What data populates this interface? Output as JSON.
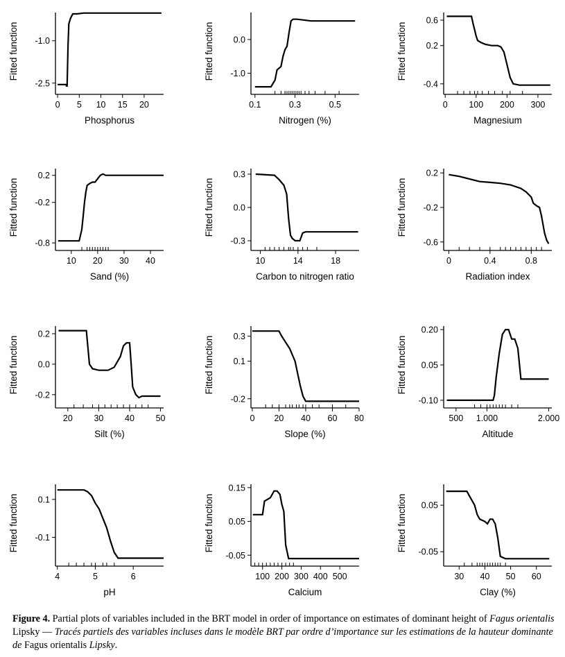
{
  "colors": {
    "line": "#000000",
    "background": "#ffffff"
  },
  "ylabel_common": "Fitted function",
  "chart_data": [
    {
      "type": "line",
      "id": "phosphorus",
      "xlabel": "Phosphorus",
      "ylabel": "Fitted function",
      "xlim": [
        -0.5,
        24.5
      ],
      "ylim": [
        -2.75,
        0.0
      ],
      "xticks": [
        0,
        5,
        10,
        15,
        20
      ],
      "xticklabels": [
        "0",
        "5",
        "10",
        "15",
        "20"
      ],
      "yticks": [
        -2.5,
        -1.0
      ],
      "yticklabels": [
        "-2.5",
        "-1.0"
      ],
      "rug": [],
      "x": [
        0,
        2.0,
        2.05,
        2.2,
        2.4,
        2.6,
        3.0,
        3.5,
        4.5,
        6,
        24
      ],
      "y": [
        -2.55,
        -2.55,
        -2.6,
        -2.6,
        -1.2,
        -0.4,
        -0.2,
        -0.05,
        -0.05,
        -0.02,
        -0.02
      ]
    },
    {
      "type": "line",
      "id": "nitrogen",
      "xlabel": "Nitrogen (%)",
      "ylabel": "Fitted function",
      "xlim": [
        0.08,
        0.62
      ],
      "ylim": [
        -1.5,
        0.8
      ],
      "xticks": [
        0.1,
        0.3,
        0.5
      ],
      "xticklabels": [
        "0.1",
        "0.3",
        "0.5"
      ],
      "yticks": [
        -1.0,
        0.0
      ],
      "yticklabels": [
        "-1.0",
        "0.0"
      ],
      "rug": [
        0.2,
        0.23,
        0.25,
        0.26,
        0.27,
        0.28,
        0.29,
        0.3,
        0.31,
        0.32,
        0.33,
        0.35,
        0.37,
        0.4,
        0.45,
        0.52
      ],
      "x": [
        0.1,
        0.18,
        0.2,
        0.21,
        0.23,
        0.24,
        0.25,
        0.26,
        0.27,
        0.28,
        0.29,
        0.31,
        0.38,
        0.6
      ],
      "y": [
        -1.4,
        -1.4,
        -1.2,
        -0.9,
        -0.8,
        -0.5,
        -0.3,
        -0.2,
        0.2,
        0.55,
        0.6,
        0.6,
        0.55,
        0.55
      ]
    },
    {
      "type": "line",
      "id": "magnesium",
      "xlabel": "Magnesium",
      "ylabel": "Fitted function",
      "xlim": [
        -5,
        345
      ],
      "ylim": [
        -0.5,
        0.72
      ],
      "xticks": [
        0,
        100,
        200,
        300
      ],
      "xticklabels": [
        "0",
        "100",
        "200",
        "300"
      ],
      "yticks": [
        -0.4,
        0.2,
        0.6
      ],
      "yticklabels": [
        "-0.4",
        "0.2",
        "0.6"
      ],
      "rug": [
        40,
        60,
        80,
        95,
        105,
        120,
        140,
        160,
        185,
        210,
        250
      ],
      "x": [
        5,
        85,
        90,
        95,
        100,
        105,
        115,
        130,
        150,
        170,
        180,
        190,
        200,
        210,
        220,
        240,
        340
      ],
      "y": [
        0.66,
        0.66,
        0.55,
        0.45,
        0.35,
        0.28,
        0.25,
        0.22,
        0.2,
        0.2,
        0.18,
        0.1,
        -0.1,
        -0.3,
        -0.4,
        -0.42,
        -0.42
      ]
    },
    {
      "type": "line",
      "id": "sand",
      "xlabel": "Sand (%)",
      "ylabel": "Fitted function",
      "xlim": [
        4,
        45
      ],
      "ylim": [
        -0.85,
        0.3
      ],
      "xticks": [
        10,
        20,
        30,
        40
      ],
      "xticklabels": [
        "10",
        "20",
        "30",
        "40"
      ],
      "yticks": [
        -0.8,
        -0.2,
        0.2
      ],
      "yticklabels": [
        "-0.8",
        "-0.2",
        "0.2"
      ],
      "rug": [
        14,
        16,
        17,
        18,
        19,
        20,
        21,
        22,
        23,
        24
      ],
      "x": [
        5,
        13,
        14,
        14.5,
        15,
        15.5,
        16,
        17,
        18,
        19,
        20,
        21,
        22,
        23,
        25,
        45
      ],
      "y": [
        -0.77,
        -0.77,
        -0.6,
        -0.4,
        -0.2,
        -0.05,
        0.05,
        0.08,
        0.1,
        0.1,
        0.15,
        0.2,
        0.22,
        0.2,
        0.2,
        0.2
      ]
    },
    {
      "type": "line",
      "id": "cn_ratio",
      "xlabel": "Carbon to nitrogen ratio",
      "ylabel": "Fitted function",
      "xlim": [
        9,
        20.5
      ],
      "ylim": [
        -0.35,
        0.35
      ],
      "xticks": [
        10,
        14,
        18
      ],
      "xticklabels": [
        "10",
        "14",
        "18"
      ],
      "yticks": [
        -0.3,
        0.0,
        0.3
      ],
      "yticklabels": [
        "-0.3",
        "0.0",
        "0.3"
      ],
      "rug": [
        10.5,
        11,
        11.5,
        12,
        12.5,
        13,
        13.2,
        13.5,
        14,
        14.5,
        15,
        16
      ],
      "x": [
        9.5,
        11.5,
        12,
        12.5,
        12.8,
        13,
        13.2,
        13.4,
        13.7,
        14.2,
        14.5,
        14.8,
        20.4
      ],
      "y": [
        0.3,
        0.29,
        0.25,
        0.2,
        0.12,
        -0.1,
        -0.25,
        -0.28,
        -0.3,
        -0.3,
        -0.23,
        -0.22,
        -0.22
      ]
    },
    {
      "type": "line",
      "id": "radiation",
      "xlabel": "Radiation index",
      "ylabel": "Fitted function",
      "xlim": [
        -0.05,
        1.0
      ],
      "ylim": [
        -0.65,
        0.25
      ],
      "xticks": [
        0,
        0.4,
        0.8
      ],
      "xticklabels": [
        "0",
        "0.4",
        "0.8"
      ],
      "yticks": [
        -0.6,
        -0.2,
        0.2
      ],
      "yticklabels": [
        "-0.6",
        "-0.2",
        "0.2"
      ],
      "rug": [
        0.1,
        0.2,
        0.3,
        0.4,
        0.5,
        0.55,
        0.6,
        0.65,
        0.7,
        0.75,
        0.8,
        0.85,
        0.9
      ],
      "x": [
        0,
        0.1,
        0.2,
        0.3,
        0.4,
        0.5,
        0.6,
        0.7,
        0.75,
        0.8,
        0.82,
        0.85,
        0.88,
        0.9,
        0.93,
        0.95,
        0.97
      ],
      "y": [
        0.18,
        0.16,
        0.13,
        0.1,
        0.09,
        0.08,
        0.06,
        0.02,
        -0.02,
        -0.08,
        -0.15,
        -0.18,
        -0.2,
        -0.3,
        -0.5,
        -0.58,
        -0.62
      ]
    },
    {
      "type": "line",
      "id": "silt",
      "xlabel": "Silt (%)",
      "ylabel": "Fitted function",
      "xlim": [
        16,
        51
      ],
      "ylim": [
        -0.26,
        0.25
      ],
      "xticks": [
        20,
        30,
        40,
        50
      ],
      "xticklabels": [
        "20",
        "30",
        "40",
        "50"
      ],
      "rug": [
        22,
        25,
        28,
        30,
        32,
        34,
        36,
        38,
        40,
        42,
        44,
        46
      ],
      "yticks": [
        -0.2,
        0.0,
        0.2
      ],
      "yticklabels": [
        "-0.2",
        "0.0",
        "0.2"
      ],
      "x": [
        17,
        26,
        27,
        28,
        30,
        33,
        35,
        37,
        38,
        39,
        40,
        40.5,
        41,
        42,
        43,
        44,
        50
      ],
      "y": [
        0.22,
        0.22,
        0.0,
        -0.03,
        -0.04,
        -0.04,
        -0.02,
        0.05,
        0.12,
        0.14,
        0.14,
        0.0,
        -0.15,
        -0.2,
        -0.22,
        -0.21,
        -0.21
      ]
    },
    {
      "type": "line",
      "id": "slope",
      "xlabel": "Slope (%)",
      "ylabel": "Fitted function",
      "xlim": [
        -1,
        80
      ],
      "ylim": [
        -0.24,
        0.38
      ],
      "xticks": [
        0,
        20,
        40,
        60,
        80
      ],
      "xticklabels": [
        "0",
        "20",
        "40",
        "60",
        "80"
      ],
      "yticks": [
        -0.2,
        0.1,
        0.3
      ],
      "yticklabels": [
        "-0.2",
        "0.1",
        "0.3"
      ],
      "rug": [
        10,
        15,
        20,
        25,
        28,
        30,
        33,
        35,
        38,
        40,
        45,
        50,
        60,
        70
      ],
      "x": [
        0,
        20,
        22,
        25,
        28,
        30,
        32,
        34,
        36,
        38,
        40,
        45,
        80
      ],
      "y": [
        0.34,
        0.34,
        0.3,
        0.25,
        0.2,
        0.15,
        0.1,
        0.0,
        -0.1,
        -0.18,
        -0.22,
        -0.22,
        -0.22
      ]
    },
    {
      "type": "line",
      "id": "altitude",
      "xlabel": "Altitude",
      "ylabel": "Fitted function",
      "xlim": [
        300,
        2050
      ],
      "ylim": [
        -0.115,
        0.215
      ],
      "xticks": [
        500,
        1000,
        2000
      ],
      "xticklabels": [
        "500",
        "1.000",
        "2.000"
      ],
      "yticks": [
        -0.1,
        0.05,
        0.2
      ],
      "yticklabels": [
        "-0.10",
        "0.05",
        "0.20"
      ],
      "rug": [
        800,
        900,
        1000,
        1050,
        1100,
        1150,
        1200,
        1250,
        1300,
        1400,
        1500
      ],
      "x": [
        350,
        1100,
        1120,
        1150,
        1200,
        1250,
        1300,
        1350,
        1400,
        1450,
        1500,
        1550,
        2000
      ],
      "y": [
        -0.1,
        -0.1,
        -0.08,
        0.0,
        0.1,
        0.18,
        0.2,
        0.2,
        0.16,
        0.16,
        0.12,
        -0.01,
        -0.01
      ]
    },
    {
      "type": "line",
      "id": "ph",
      "xlabel": "pH",
      "ylabel": "Fitted function",
      "xlim": [
        3.95,
        6.8
      ],
      "ylim": [
        -0.23,
        0.18
      ],
      "xticks": [
        4,
        5,
        6
      ],
      "xticklabels": [
        "4",
        "5",
        "6"
      ],
      "yticks": [
        -0.1,
        0.1
      ],
      "yticklabels": [
        "-0.1",
        "0.1"
      ],
      "rug": [
        4.3,
        4.5,
        4.7,
        4.9,
        5.0,
        5.2,
        5.3,
        5.5
      ],
      "x": [
        4,
        4.7,
        4.8,
        4.9,
        5.0,
        5.1,
        5.2,
        5.3,
        5.4,
        5.5,
        5.6,
        6.8
      ],
      "y": [
        0.15,
        0.15,
        0.14,
        0.12,
        0.08,
        0.05,
        0.0,
        -0.05,
        -0.12,
        -0.18,
        -0.21,
        -0.21
      ]
    },
    {
      "type": "line",
      "id": "calcium",
      "xlabel": "Calcium",
      "ylabel": "Fitted function",
      "xlim": [
        40,
        600
      ],
      "ylim": [
        -0.07,
        0.16
      ],
      "xticks": [
        100,
        200,
        300,
        400,
        500
      ],
      "xticklabels": [
        "100",
        "200",
        "300",
        "400",
        "500"
      ],
      "yticks": [
        -0.05,
        0.05,
        0.15
      ],
      "yticklabels": [
        "-0.05",
        "0.05",
        "0.15"
      ],
      "rug": [
        60,
        80,
        100,
        120,
        140,
        160,
        180,
        200,
        220,
        240,
        260
      ],
      "x": [
        50,
        100,
        110,
        140,
        150,
        160,
        175,
        190,
        200,
        210,
        220,
        235,
        250,
        600
      ],
      "y": [
        0.07,
        0.07,
        0.11,
        0.12,
        0.13,
        0.14,
        0.14,
        0.13,
        0.1,
        0.08,
        -0.02,
        -0.06,
        -0.06,
        -0.06
      ]
    },
    {
      "type": "line",
      "id": "clay",
      "xlabel": "Clay (%)",
      "ylabel": "Fitted function",
      "xlim": [
        24,
        66
      ],
      "ylim": [
        -0.072,
        0.095
      ],
      "xticks": [
        30,
        40,
        50,
        60
      ],
      "xticklabels": [
        "30",
        "40",
        "50",
        "60"
      ],
      "yticks": [
        -0.05,
        0.05
      ],
      "yticklabels": [
        "-0.05",
        "0.05"
      ],
      "rug": [
        32,
        35,
        37,
        38,
        39,
        40,
        41,
        42,
        43,
        44,
        45,
        46,
        48
      ],
      "x": [
        25,
        33,
        34,
        35,
        36,
        37,
        38,
        40,
        41,
        42,
        43,
        44,
        45,
        46,
        48,
        65
      ],
      "y": [
        0.08,
        0.08,
        0.07,
        0.06,
        0.05,
        0.03,
        0.02,
        0.015,
        0.01,
        0.02,
        0.02,
        0.01,
        -0.02,
        -0.06,
        -0.065,
        -0.065
      ]
    }
  ],
  "caption": {
    "label": "Figure 4.",
    "text_en": " Partial plots of variables included in the BRT model in order of importance on estimates of dominant height of ",
    "species_en": "Fagus orientalis",
    "author_en": " Lipsky — ",
    "text_fr": "Tracés partiels des variables incluses dans le modèle BRT par ordre d’importance sur les estimations de la hauteur dominante de ",
    "species_fr": "Fagus orientalis",
    "author_fr": " Lipsky",
    "end": "."
  }
}
